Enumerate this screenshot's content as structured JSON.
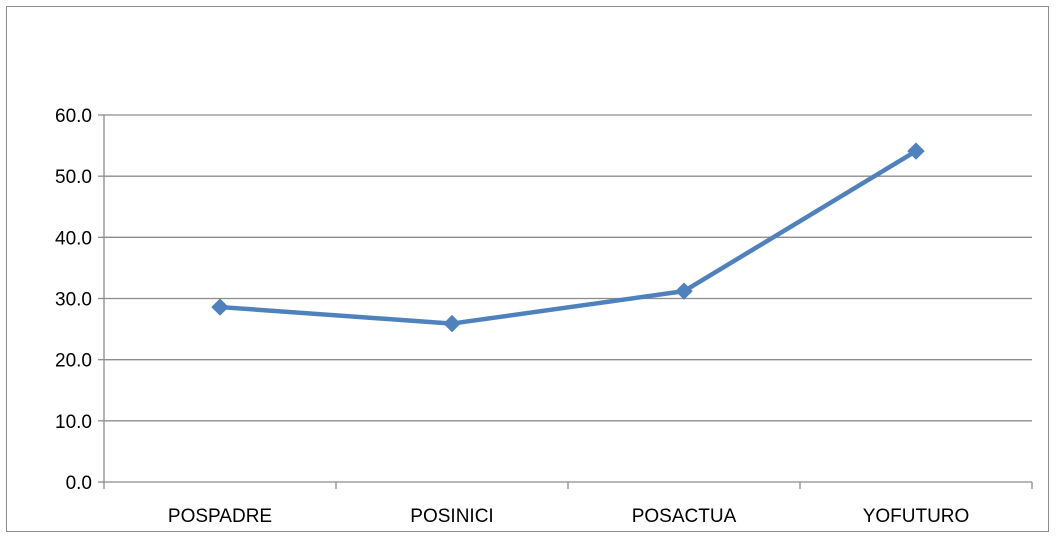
{
  "chart_data": {
    "type": "line",
    "title": "",
    "xlabel": "",
    "ylabel": "",
    "categories": [
      "POSPADRE",
      "POSINICI",
      "POSACTUA",
      "YOFUTURO"
    ],
    "series": [
      {
        "values": [
          28.6,
          25.9,
          31.2,
          54.1
        ]
      }
    ],
    "ylim": [
      0,
      60
    ],
    "y_ticks": [
      0,
      10,
      20,
      30,
      40,
      50,
      60
    ],
    "y_tick_labels": [
      "0.0",
      "10.0",
      "20.0",
      "30.0",
      "40.0",
      "50.0",
      "60.0"
    ],
    "grid": true,
    "legend": "none",
    "marker": "diamond",
    "colors": {
      "series_line": "#4f81bd",
      "gridline": "#8c8c8c",
      "axis": "#8c8c8c"
    }
  }
}
